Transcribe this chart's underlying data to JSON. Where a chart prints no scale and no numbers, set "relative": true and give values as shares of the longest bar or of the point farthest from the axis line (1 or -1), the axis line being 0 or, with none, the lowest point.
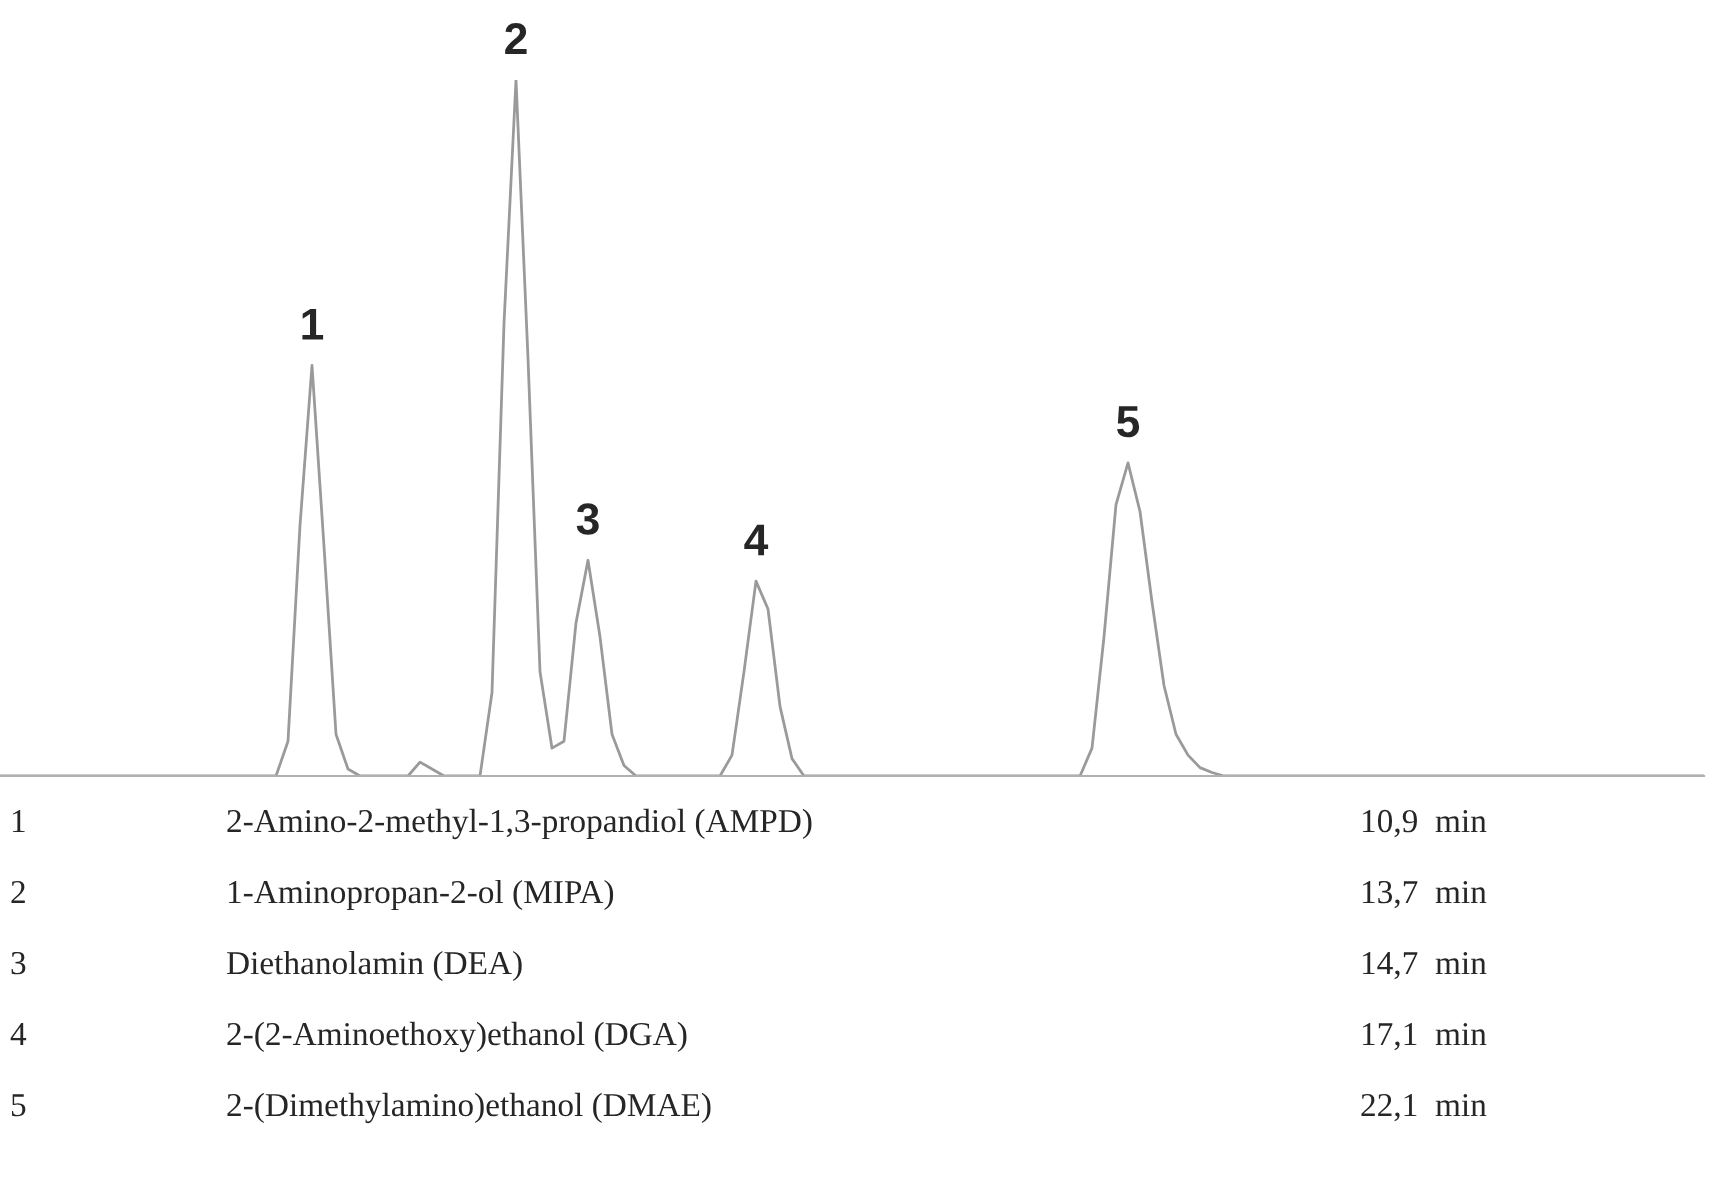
{
  "chart_data": {
    "type": "line",
    "relative": true,
    "categories": [
      null,
      null,
      null,
      null,
      null,
      null,
      null,
      null,
      null,
      null,
      null,
      null,
      null,
      null,
      null,
      null,
      null,
      null,
      null,
      null,
      null,
      null,
      null,
      null,
      null,
      null,
      null,
      null,
      null,
      null,
      null,
      null,
      null,
      null,
      null,
      null,
      null,
      null,
      null,
      null,
      null,
      null,
      null,
      null,
      null,
      null,
      null,
      null,
      null,
      null,
      null,
      null,
      null,
      null,
      null,
      null,
      null,
      null,
      null,
      null,
      null,
      null,
      null,
      null,
      null,
      null,
      null,
      null,
      null,
      null,
      null,
      null,
      null,
      null,
      null,
      null,
      null,
      null,
      null,
      null,
      null,
      null,
      null,
      null,
      null,
      null,
      null,
      null,
      null,
      null,
      null,
      null,
      null,
      null,
      null,
      null,
      null,
      null,
      null,
      null,
      null,
      null,
      null,
      null,
      null,
      null,
      null,
      null,
      null,
      null,
      null,
      null,
      null,
      null,
      null,
      null,
      null,
      null,
      null,
      null,
      null,
      null,
      null,
      null,
      null,
      null,
      null,
      null,
      null,
      null,
      null,
      null,
      null,
      null,
      null,
      null,
      null,
      null,
      null,
      null,
      null,
      null,
      null
    ],
    "series": [
      {
        "color": "#9a9a9a",
        "values": [
          0,
          0,
          0,
          0,
          0,
          0,
          0,
          0,
          0,
          0,
          0,
          0,
          0,
          0,
          0,
          0,
          0,
          0,
          0,
          0,
          0,
          0,
          0,
          0,
          0.05,
          0.36,
          0.59,
          0.33,
          0.06,
          0.01,
          0,
          0,
          0,
          0,
          0,
          0.02,
          0.01,
          0,
          0,
          0,
          0,
          0.12,
          0.65,
          1,
          0.6,
          0.15,
          0.04,
          0.05,
          0.22,
          0.31,
          0.2,
          0.06,
          0.015,
          0,
          0,
          0,
          0,
          0,
          0,
          0,
          0,
          0.03,
          0.15,
          0.28,
          0.24,
          0.1,
          0.025,
          0,
          0,
          0,
          0,
          0,
          0,
          0,
          0,
          0,
          0,
          0,
          0,
          0,
          0,
          0,
          0,
          0,
          0,
          0,
          0,
          0,
          0,
          0,
          0,
          0.04,
          0.2,
          0.39,
          0.45,
          0.38,
          0.25,
          0.13,
          0.06,
          0.03,
          0.012,
          0.005,
          0,
          0,
          0,
          0,
          0,
          0,
          0,
          0,
          0,
          0,
          0,
          0,
          0,
          0,
          0,
          0,
          0,
          0,
          0,
          0,
          0,
          0,
          0,
          0,
          0,
          0,
          0,
          0,
          0,
          0,
          0,
          0,
          0,
          0,
          0,
          0,
          0,
          0,
          0,
          0,
          0
        ]
      }
    ],
    "annotations": [
      "1",
      "2",
      "3",
      "4",
      "5",
      "1",
      "2-Amino-2-methyl-1,3-propandiol (AMPD)",
      "10,9  min",
      "2",
      "1-Aminopropan-2-ol (MIPA)",
      "13,7  min",
      "3",
      "Diethanolamin (DEA)",
      "14,7  min",
      "4",
      "2-(2-Aminoethoxy)ethanol (DGA)",
      "17,1  min",
      "5",
      "2-(Dimethylamino)ethanol (DMAE)",
      "22,1  min"
    ]
  }
}
